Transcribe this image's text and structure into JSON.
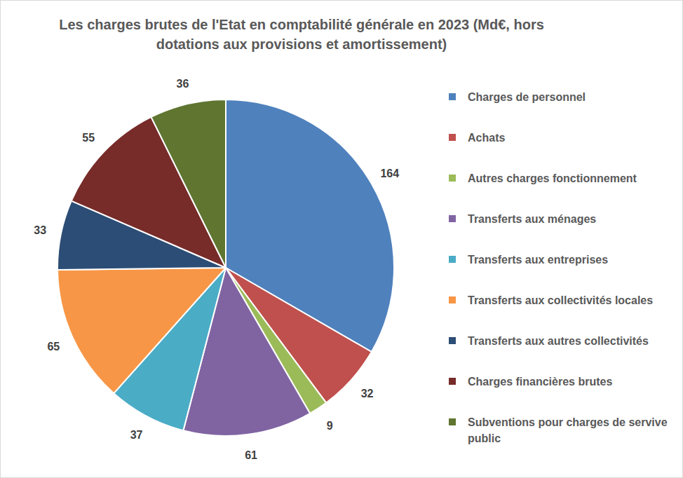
{
  "chart_data": {
    "type": "pie",
    "title": "Les charges brutes de l'Etat en comptabilité générale en 2023 (Md€, hors dotations aux provisions et amortissement)",
    "categories": [
      "Charges de personnel",
      "Achats",
      "Autres charges fonctionnement",
      "Transferts aux ménages",
      "Transferts aux entreprises",
      "Transferts aux collectivités locales",
      "Transferts aux autres collectivités",
      "Charges financières brutes",
      "Subventions pour charges de servive public"
    ],
    "values": [
      164,
      32,
      9,
      61,
      37,
      65,
      33,
      55,
      36
    ],
    "colors": [
      "#4f81bd",
      "#c0504d",
      "#9bbb59",
      "#8064a2",
      "#4bacc6",
      "#f79646",
      "#2c4d75",
      "#772c2a",
      "#5f7530"
    ],
    "data_labels": true,
    "legend": "right"
  }
}
